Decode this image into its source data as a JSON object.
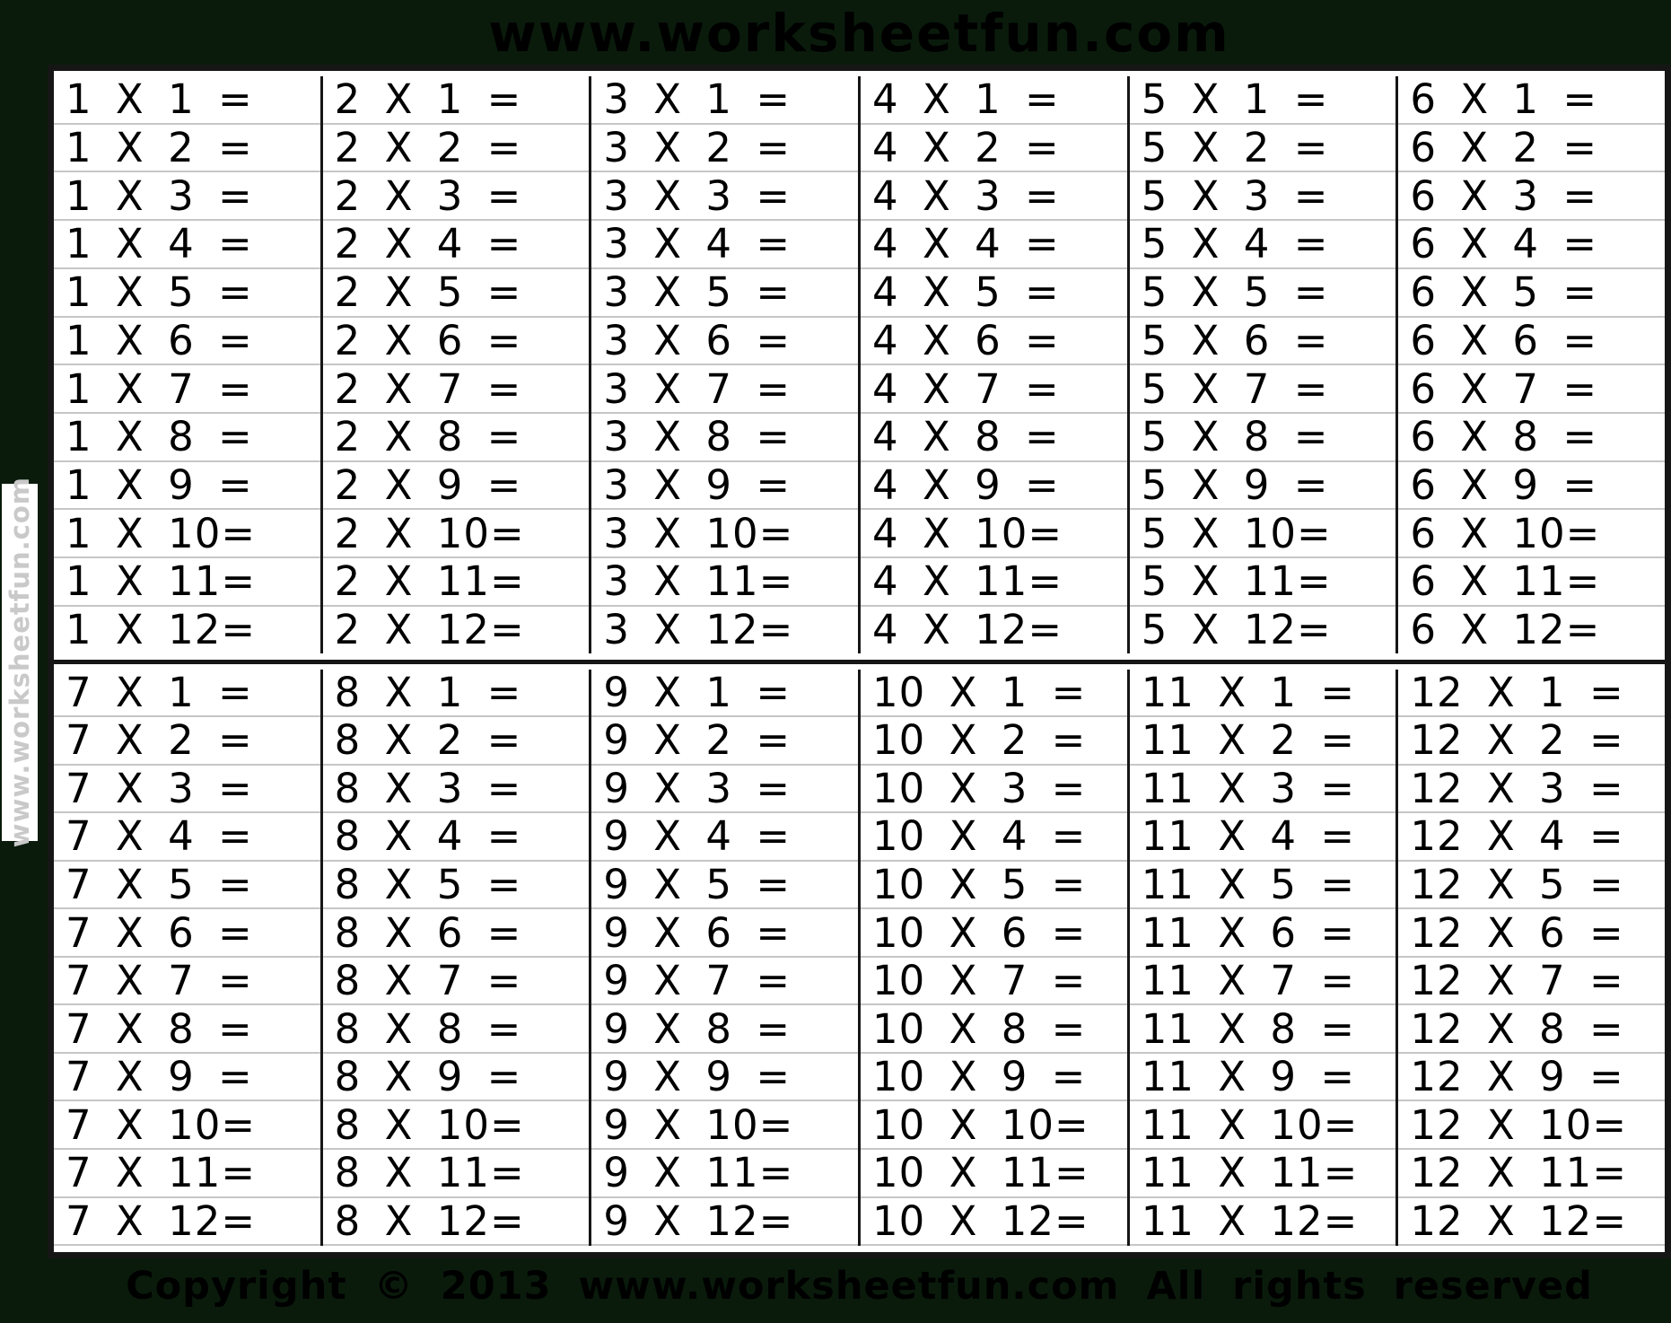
{
  "colors": {
    "background": "#0a1b0c",
    "cell_background": "#ffffff",
    "table_border": "#161616",
    "grid_line": "#c6c6c6",
    "cell_text": "#000000",
    "side_watermark_text": "#c9c9c9"
  },
  "watermarks": {
    "top": "www.worksheetfun.com",
    "side": "www.worksheetfun.com"
  },
  "footer": {
    "text": "Copyright © 2013 www.worksheetfun.com All rights reserved"
  },
  "table": {
    "top_blocks": [
      {
        "times": 1,
        "cells": [
          "1 X 1 =",
          "1 X 2 =",
          "1 X 3 =",
          "1 X 4 =",
          "1 X 5 =",
          "1 X 6 =",
          "1 X 7 =",
          "1 X 8 =",
          "1 X 9 =",
          "1 X 10=",
          "1 X 11=",
          "1 X 12="
        ]
      },
      {
        "times": 2,
        "cells": [
          "2 X 1 =",
          "2 X 2 =",
          "2 X 3 =",
          "2 X 4 =",
          "2 X 5 =",
          "2 X 6 =",
          "2 X 7 =",
          "2 X 8 =",
          "2 X 9 =",
          "2 X 10=",
          "2 X 11=",
          "2 X 12="
        ]
      },
      {
        "times": 3,
        "cells": [
          "3 X 1 =",
          "3 X 2 =",
          "3 X 3 =",
          "3 X 4 =",
          "3 X 5 =",
          "3 X 6 =",
          "3 X 7 =",
          "3 X 8 =",
          "3 X 9 =",
          "3 X 10=",
          "3 X 11=",
          "3 X 12="
        ]
      },
      {
        "times": 4,
        "cells": [
          "4 X 1 =",
          "4 X 2 =",
          "4 X 3 =",
          "4 X 4 =",
          "4 X 5 =",
          "4 X 6 =",
          "4 X 7 =",
          "4 X 8 =",
          "4 X 9 =",
          "4 X 10=",
          "4 X 11=",
          "4 X 12="
        ]
      },
      {
        "times": 5,
        "cells": [
          "5 X 1 =",
          "5 X 2 =",
          "5 X 3 =",
          "5 X 4 =",
          "5 X 5 =",
          "5 X 6 =",
          "5 X 7 =",
          "5 X 8 =",
          "5 X 9 =",
          "5 X 10=",
          "5 X 11=",
          "5 X 12="
        ]
      },
      {
        "times": 6,
        "cells": [
          "6 X 1 =",
          "6 X 2 =",
          "6 X 3 =",
          "6 X 4 =",
          "6 X 5 =",
          "6 X 6 =",
          "6 X 7 =",
          "6 X 8 =",
          "6 X 9 =",
          "6 X 10=",
          "6 X 11=",
          "6 X 12="
        ]
      }
    ],
    "bottom_blocks": [
      {
        "times": 7,
        "cells": [
          "7 X 1 =",
          "7 X 2 =",
          "7 X 3 =",
          "7 X 4 =",
          "7 X 5 =",
          "7 X 6 =",
          "7 X 7 =",
          "7 X 8 =",
          "7 X 9 =",
          "7 X 10=",
          "7 X 11=",
          "7 X 12="
        ]
      },
      {
        "times": 8,
        "cells": [
          "8 X 1 =",
          "8 X 2 =",
          "8 X 3 =",
          "8 X 4 =",
          "8 X 5 =",
          "8 X 6 =",
          "8 X 7 =",
          "8 X 8 =",
          "8 X 9 =",
          "8 X 10=",
          "8 X 11=",
          "8 X 12="
        ]
      },
      {
        "times": 9,
        "cells": [
          "9 X 1 =",
          "9 X 2 =",
          "9 X 3 =",
          "9 X 4 =",
          "9 X 5 =",
          "9 X 6 =",
          "9 X 7 =",
          "9 X 8 =",
          "9 X 9 =",
          "9 X 10=",
          "9 X 11=",
          "9 X 12="
        ]
      },
      {
        "times": 10,
        "cells": [
          "10 X 1 =",
          "10 X 2 =",
          "10 X 3 =",
          "10 X 4 =",
          "10 X 5 =",
          "10 X 6 =",
          "10 X 7 =",
          "10 X 8 =",
          "10 X 9 =",
          "10 X 10=",
          "10 X 11=",
          "10 X 12="
        ]
      },
      {
        "times": 11,
        "cells": [
          "11 X 1 =",
          "11 X 2 =",
          "11 X 3 =",
          "11 X 4 =",
          "11 X 5 =",
          "11 X 6 =",
          "11 X 7 =",
          "11 X 8 =",
          "11 X 9 =",
          "11 X 10=",
          "11 X 11=",
          "11 X 12="
        ]
      },
      {
        "times": 12,
        "cells": [
          "12 X 1 =",
          "12 X 2 =",
          "12 X 3 =",
          "12 X 4 =",
          "12 X 5 =",
          "12 X 6 =",
          "12 X 7 =",
          "12 X 8 =",
          "12 X 9 =",
          "12 X 10=",
          "12 X 11=",
          "12 X 12="
        ]
      }
    ]
  }
}
